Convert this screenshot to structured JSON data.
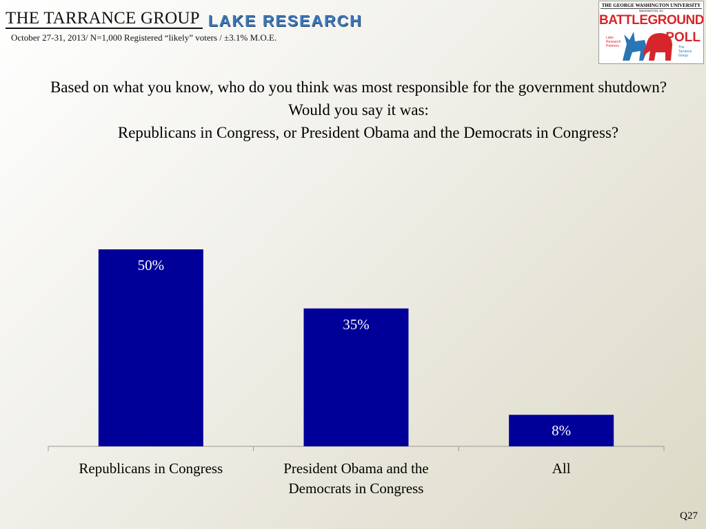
{
  "header": {
    "tarrance_logo": "THE TARRANCE GROUP",
    "lake_logo": "LAKE RESEARCH",
    "meta": "October 27-31, 2013/ N=1,000 Registered “likely” voters / ±3.1% M.O.E."
  },
  "badge": {
    "university": "THE GEORGE WASHINGTON UNIVERSITY",
    "city": "WASHINGTON, DC",
    "battleground": "BATTLEGROUND",
    "poll": "POLL",
    "lake_partners": "Lake Research Partners",
    "tarrance": "The Tarrance Group"
  },
  "question": {
    "line1": "Based on what you know, who do you think was most responsible for the government shutdown?  Would you say it was:",
    "line2": "Republicans in Congress, or President Obama and the Democrats in Congress?"
  },
  "chart_data": {
    "type": "bar",
    "categories": [
      "Republicans in Congress",
      "President Obama and the Democrats in Congress",
      "All"
    ],
    "category_lines": [
      [
        "Republicans in Congress"
      ],
      [
        "President Obama and the",
        "Democrats in Congress"
      ],
      [
        "All"
      ]
    ],
    "values": [
      50,
      35,
      8
    ],
    "value_labels": [
      "50%",
      "35%",
      "8%"
    ],
    "ylim": [
      0,
      50
    ],
    "bar_color": "#000099",
    "grid": false
  },
  "footer": {
    "code": "Q27"
  }
}
